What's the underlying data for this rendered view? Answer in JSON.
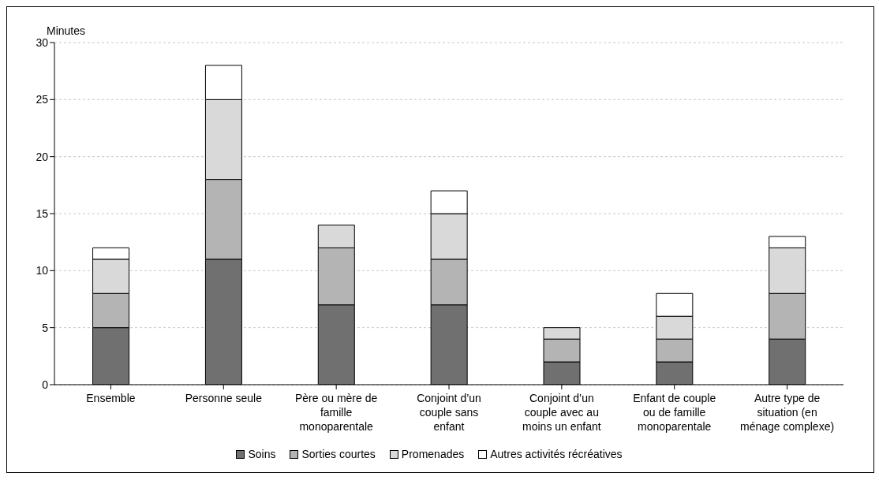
{
  "chart_data": {
    "type": "bar",
    "stacked": true,
    "ylabel": "Minutes",
    "categories": [
      "Ensemble",
      "Personne seule",
      "Père ou mère de famille monoparentale",
      "Conjoint d’un couple sans enfant",
      "Conjoint d’un couple avec au moins un enfant",
      "Enfant de couple ou de famille monoparentale",
      "Autre type de situation (en ménage complexe)"
    ],
    "series": [
      {
        "name": "Soins",
        "color": "#707070",
        "values": [
          5,
          11,
          7,
          7,
          2,
          2,
          4
        ]
      },
      {
        "name": "Sorties courtes",
        "color": "#b4b4b4",
        "values": [
          3,
          7,
          5,
          4,
          2,
          2,
          4
        ]
      },
      {
        "name": "Promenades",
        "color": "#d9d9d9",
        "values": [
          3,
          7,
          2,
          4,
          1,
          2,
          4
        ]
      },
      {
        "name": "Autres activités récréatives",
        "color": "#ffffff",
        "values": [
          1,
          3,
          0,
          2,
          0,
          2,
          1
        ]
      }
    ],
    "ylim": [
      0,
      30
    ],
    "yticks": [
      0,
      5,
      10,
      15,
      20,
      25,
      30
    ],
    "grid": "y",
    "legend": "bottom"
  }
}
